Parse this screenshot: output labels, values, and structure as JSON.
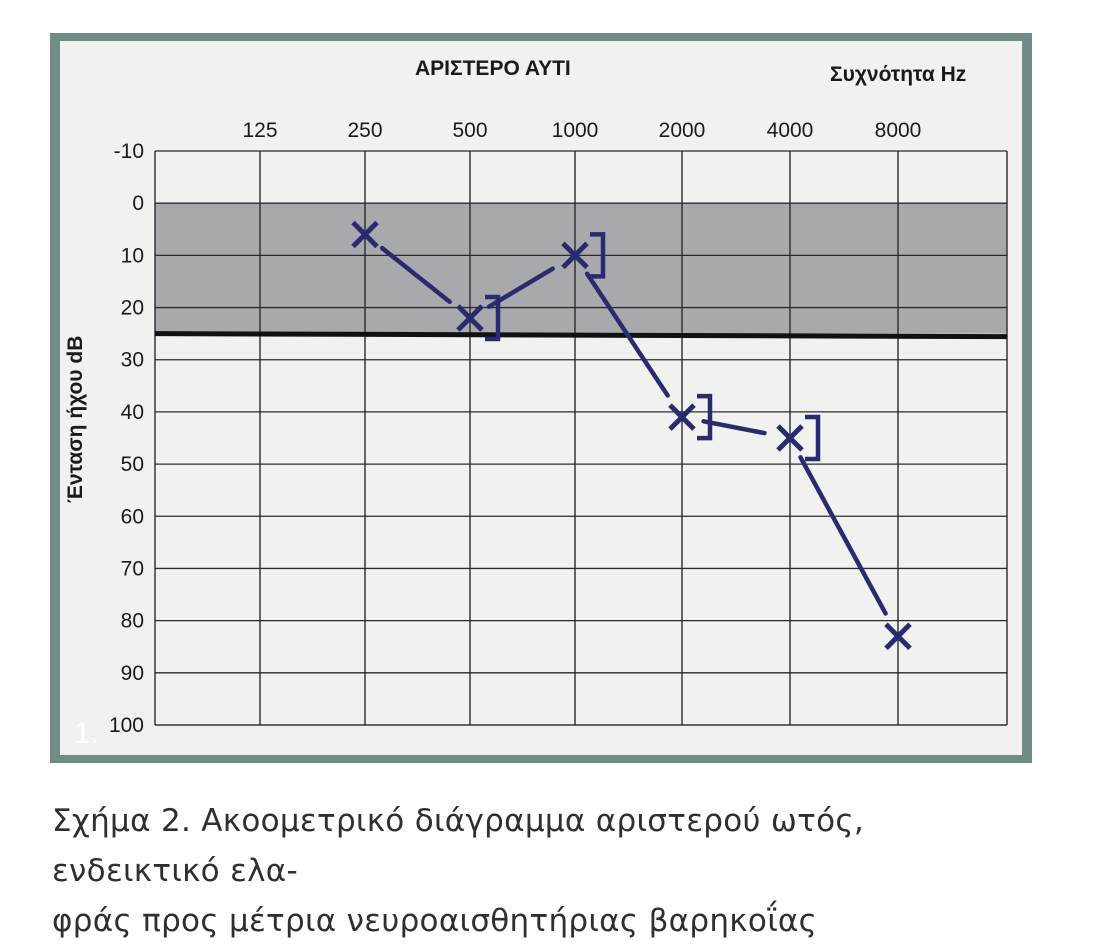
{
  "chart_data": {
    "type": "line",
    "title": "ΑΡΙΣΤΕΡΟ ΑΥΤΙ",
    "xlabel": "Συχνότητα Hz",
    "ylabel": "Ένταση ήχου   dB",
    "x_ticks": [
      "125",
      "250",
      "500",
      "1000",
      "2000",
      "4000",
      "8000"
    ],
    "y_ticks": [
      "-10",
      "0",
      "10",
      "20",
      "30",
      "40",
      "50",
      "60",
      "70",
      "80",
      "90",
      "100"
    ],
    "ylim": [
      -10,
      100
    ],
    "y_inverted": true,
    "x_scale": "octave",
    "normal_range_shaded": [
      0,
      25
    ],
    "threshold_line": 25,
    "series": [
      {
        "marker": "X",
        "color": "#2a2a6e",
        "x": [
          "250",
          "500",
          "1000",
          "2000",
          "4000",
          "8000"
        ],
        "values": [
          6,
          22,
          10,
          41,
          45,
          83
        ]
      },
      {
        "marker": "]",
        "color": "#2a2a6e",
        "x": [
          "500",
          "1000",
          "2000",
          "4000"
        ],
        "values": [
          22,
          10,
          41,
          45
        ]
      }
    ]
  },
  "panel_label": "1.",
  "caption": {
    "label": "Σχήμα 2.",
    "line1": " Ακοομετρικό διάγραμμα αριστερού ωτός, ενδεικτικό ελα-",
    "line2": "φράς προς μέτρια νευροαισθητήριας βαρηκοΐας"
  }
}
